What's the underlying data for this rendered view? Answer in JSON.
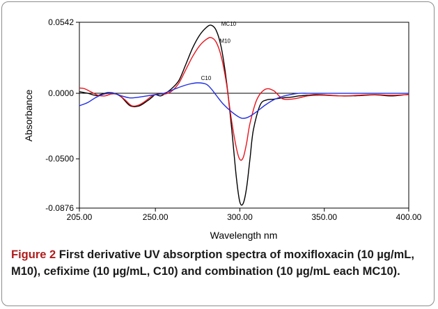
{
  "caption": {
    "label": "Figure 2",
    "text": "First derivative UV absorption spectra of moxifloxacin (10 µg/mL, M10), cefixime (10 µg/mL, C10) and combination (10 µg/mL each MC10)."
  },
  "chart_data": {
    "type": "line",
    "xlabel": "Wavelength nm",
    "ylabel": "Absorbance",
    "xlim": [
      205,
      400
    ],
    "ylim": [
      -0.0876,
      0.0542
    ],
    "xticks": [
      "205.00",
      "250.00",
      "300.00",
      "350.00",
      "400.00"
    ],
    "xtick_values": [
      205,
      250,
      300,
      350,
      400
    ],
    "yticks": [
      "0.0542",
      "0.0000",
      "-0.0500",
      "-0.0876"
    ],
    "ytick_values": [
      0.0542,
      0.0,
      -0.05,
      -0.0876
    ],
    "zero_line": true,
    "grid": false,
    "series": [
      {
        "name": "MC10",
        "color": "#000000",
        "x": [
          205,
          210,
          215,
          218,
          222,
          226,
          230,
          235,
          240,
          245,
          248,
          250,
          253,
          256,
          260,
          264,
          268,
          272,
          276,
          280,
          283,
          286,
          289,
          292,
          295,
          298,
          300,
          302,
          304,
          306,
          308,
          312,
          316,
          320,
          325,
          330,
          335,
          340,
          345,
          350,
          360,
          370,
          380,
          390,
          400
        ],
        "y": [
          0.0012,
          0.0,
          -0.0018,
          -0.0008,
          0.0005,
          -0.0001,
          -0.003,
          -0.0095,
          -0.0098,
          -0.006,
          -0.003,
          -0.001,
          -0.002,
          0.0,
          0.004,
          0.01,
          0.022,
          0.0345,
          0.044,
          0.05,
          0.052,
          0.048,
          0.035,
          0.01,
          -0.025,
          -0.065,
          -0.083,
          -0.084,
          -0.072,
          -0.05,
          -0.028,
          -0.009,
          -0.005,
          -0.0045,
          -0.0035,
          -0.003,
          -0.002,
          -0.0015,
          -0.001,
          -0.0012,
          -0.002,
          -0.0018,
          -0.0012,
          -0.002,
          -0.0008
        ]
      },
      {
        "name": "M10",
        "color": "#e8141c",
        "x": [
          205,
          208,
          212,
          216,
          220,
          224,
          228,
          232,
          236,
          240,
          244,
          248,
          252,
          256,
          260,
          264,
          268,
          272,
          276,
          280,
          283,
          286,
          289,
          292,
          295,
          298,
          300,
          302,
          304,
          306,
          310,
          315,
          320,
          325,
          330,
          335,
          340,
          345,
          350,
          360,
          370,
          380,
          390,
          400
        ],
        "y": [
          0.004,
          0.0035,
          0.001,
          -0.0015,
          -0.002,
          -0.0005,
          -0.001,
          -0.005,
          -0.0095,
          -0.009,
          -0.006,
          -0.002,
          -0.0005,
          -0.0005,
          0.002,
          0.008,
          0.018,
          0.028,
          0.036,
          0.041,
          0.0425,
          0.039,
          0.028,
          0.008,
          -0.02,
          -0.042,
          -0.0505,
          -0.049,
          -0.038,
          -0.023,
          -0.005,
          0.003,
          0.002,
          -0.004,
          -0.0045,
          -0.0035,
          -0.002,
          -0.0015,
          -0.0015,
          -0.002,
          -0.0015,
          -0.001,
          -0.0015,
          -0.001
        ]
      },
      {
        "name": "C10",
        "color": "#1f2ee0",
        "x": [
          205,
          210,
          215,
          220,
          225,
          230,
          235,
          240,
          245,
          250,
          255,
          260,
          265,
          270,
          275,
          280,
          283,
          286,
          290,
          295,
          300,
          303,
          306,
          310,
          315,
          320,
          325,
          330,
          335,
          340,
          345,
          350,
          360,
          370,
          380,
          390,
          400
        ],
        "y": [
          -0.0095,
          -0.007,
          -0.003,
          -0.0005,
          0.0,
          -0.002,
          -0.0035,
          -0.003,
          -0.002,
          -0.001,
          0.0,
          0.0025,
          0.005,
          0.007,
          0.008,
          0.007,
          0.0035,
          -0.0015,
          -0.008,
          -0.014,
          -0.0185,
          -0.019,
          -0.0175,
          -0.014,
          -0.009,
          -0.005,
          -0.0025,
          -0.001,
          0.0,
          0.0,
          0.0,
          0.0,
          0.0,
          0.0,
          0.0,
          0.0,
          0.0
        ]
      }
    ],
    "series_labels": [
      {
        "text": "MC10",
        "x": 289,
        "y": 0.0515
      },
      {
        "text": "M10",
        "x": 288,
        "y": 0.0385
      },
      {
        "text": "C10",
        "x": 277,
        "y": 0.01
      }
    ]
  }
}
